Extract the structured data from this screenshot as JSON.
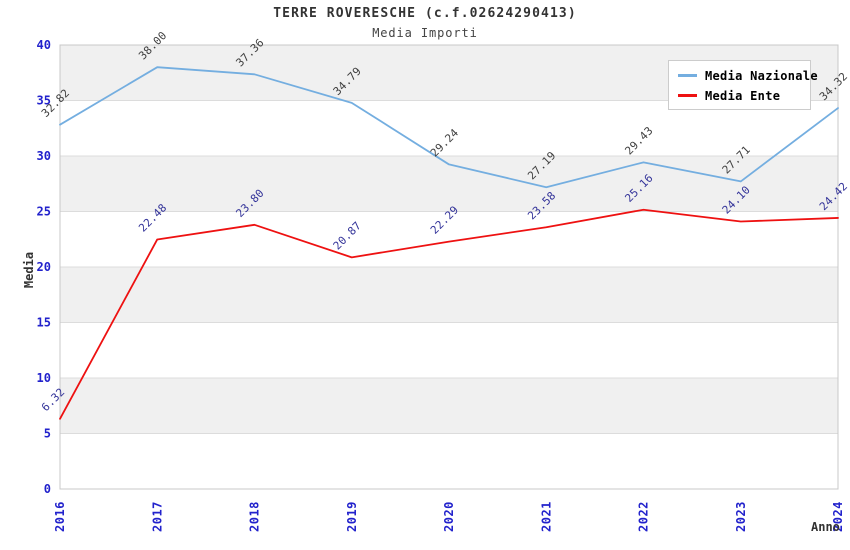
{
  "chart_data": {
    "type": "line",
    "title": "TERRE ROVERESCHE (c.f.02624290413)",
    "subtitle": "Media Importi",
    "categories": [
      "2016",
      "2017",
      "2018",
      "2019",
      "2020",
      "2021",
      "2022",
      "2023",
      "2024"
    ],
    "series": [
      {
        "name": "Media Nazionale",
        "color": "#74aee0",
        "label_color": "#404040",
        "values": [
          32.82,
          38.0,
          37.36,
          34.79,
          29.24,
          27.19,
          29.43,
          27.71,
          34.32
        ]
      },
      {
        "name": "Media Ente",
        "color": "#ee1111",
        "label_color": "#333399",
        "values": [
          6.32,
          22.48,
          23.8,
          20.87,
          22.29,
          23.58,
          25.16,
          24.1,
          24.42
        ]
      }
    ],
    "xlabel": "Anno",
    "ylabel": "Media",
    "ylim": [
      0,
      40
    ],
    "yticks": [
      0,
      5,
      10,
      15,
      20,
      25,
      30,
      35,
      40
    ],
    "value_label_decimals": 2,
    "legend_position": "top-right",
    "grid": "alternating-horizontal-bands",
    "band_colors": [
      "#ffffff",
      "#f0f0f0"
    ],
    "gridline_color": "#dcdcdc",
    "plot_border_color": "#c8c8c8",
    "axis_tick_color": "#2222cc"
  }
}
